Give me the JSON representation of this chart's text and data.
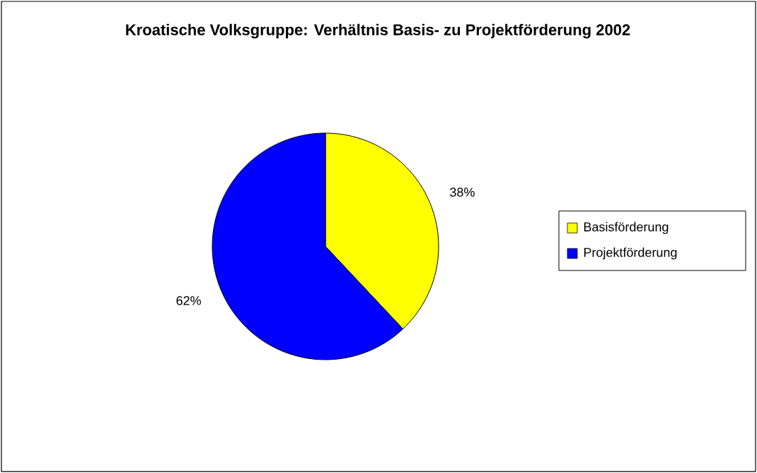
{
  "chart_data": {
    "type": "pie",
    "title": "Kroatische Volksgruppe: Verhältnis Basis- zu Projektförderung 2002",
    "categories": [
      "Basisförderung",
      "Projektförderung"
    ],
    "values": [
      38,
      62
    ],
    "value_labels": [
      "38%",
      "62%"
    ],
    "colors": [
      "#ffff00",
      "#0000ff"
    ],
    "legend": "right"
  }
}
